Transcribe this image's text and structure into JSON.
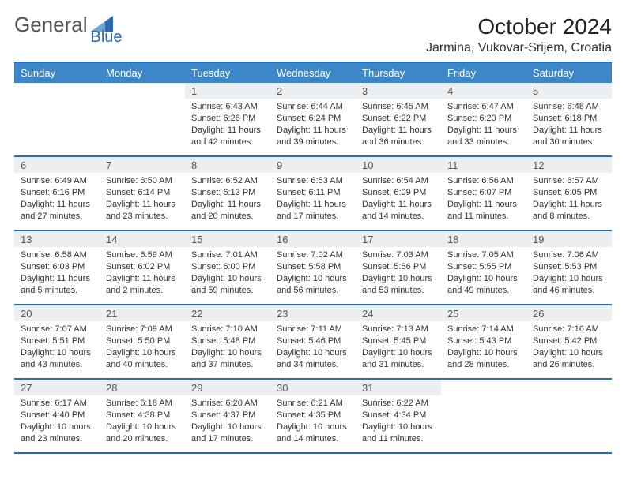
{
  "logo": {
    "part1": "General",
    "part2": "Blue"
  },
  "title": "October 2024",
  "subtitle": "Jarmina, Vukovar-Srijem, Croatia",
  "colors": {
    "header_bg": "#3b87c8",
    "border": "#2a6db5",
    "daynum_bg": "#eceff1",
    "text": "#333333",
    "logo_gray": "#555555",
    "logo_blue": "#2a6db5"
  },
  "day_names": [
    "Sunday",
    "Monday",
    "Tuesday",
    "Wednesday",
    "Thursday",
    "Friday",
    "Saturday"
  ],
  "weeks": [
    [
      null,
      null,
      {
        "d": "1",
        "sr": "Sunrise: 6:43 AM",
        "ss": "Sunset: 6:26 PM",
        "dl": "Daylight: 11 hours and 42 minutes."
      },
      {
        "d": "2",
        "sr": "Sunrise: 6:44 AM",
        "ss": "Sunset: 6:24 PM",
        "dl": "Daylight: 11 hours and 39 minutes."
      },
      {
        "d": "3",
        "sr": "Sunrise: 6:45 AM",
        "ss": "Sunset: 6:22 PM",
        "dl": "Daylight: 11 hours and 36 minutes."
      },
      {
        "d": "4",
        "sr": "Sunrise: 6:47 AM",
        "ss": "Sunset: 6:20 PM",
        "dl": "Daylight: 11 hours and 33 minutes."
      },
      {
        "d": "5",
        "sr": "Sunrise: 6:48 AM",
        "ss": "Sunset: 6:18 PM",
        "dl": "Daylight: 11 hours and 30 minutes."
      }
    ],
    [
      {
        "d": "6",
        "sr": "Sunrise: 6:49 AM",
        "ss": "Sunset: 6:16 PM",
        "dl": "Daylight: 11 hours and 27 minutes."
      },
      {
        "d": "7",
        "sr": "Sunrise: 6:50 AM",
        "ss": "Sunset: 6:14 PM",
        "dl": "Daylight: 11 hours and 23 minutes."
      },
      {
        "d": "8",
        "sr": "Sunrise: 6:52 AM",
        "ss": "Sunset: 6:13 PM",
        "dl": "Daylight: 11 hours and 20 minutes."
      },
      {
        "d": "9",
        "sr": "Sunrise: 6:53 AM",
        "ss": "Sunset: 6:11 PM",
        "dl": "Daylight: 11 hours and 17 minutes."
      },
      {
        "d": "10",
        "sr": "Sunrise: 6:54 AM",
        "ss": "Sunset: 6:09 PM",
        "dl": "Daylight: 11 hours and 14 minutes."
      },
      {
        "d": "11",
        "sr": "Sunrise: 6:56 AM",
        "ss": "Sunset: 6:07 PM",
        "dl": "Daylight: 11 hours and 11 minutes."
      },
      {
        "d": "12",
        "sr": "Sunrise: 6:57 AM",
        "ss": "Sunset: 6:05 PM",
        "dl": "Daylight: 11 hours and 8 minutes."
      }
    ],
    [
      {
        "d": "13",
        "sr": "Sunrise: 6:58 AM",
        "ss": "Sunset: 6:03 PM",
        "dl": "Daylight: 11 hours and 5 minutes."
      },
      {
        "d": "14",
        "sr": "Sunrise: 6:59 AM",
        "ss": "Sunset: 6:02 PM",
        "dl": "Daylight: 11 hours and 2 minutes."
      },
      {
        "d": "15",
        "sr": "Sunrise: 7:01 AM",
        "ss": "Sunset: 6:00 PM",
        "dl": "Daylight: 10 hours and 59 minutes."
      },
      {
        "d": "16",
        "sr": "Sunrise: 7:02 AM",
        "ss": "Sunset: 5:58 PM",
        "dl": "Daylight: 10 hours and 56 minutes."
      },
      {
        "d": "17",
        "sr": "Sunrise: 7:03 AM",
        "ss": "Sunset: 5:56 PM",
        "dl": "Daylight: 10 hours and 53 minutes."
      },
      {
        "d": "18",
        "sr": "Sunrise: 7:05 AM",
        "ss": "Sunset: 5:55 PM",
        "dl": "Daylight: 10 hours and 49 minutes."
      },
      {
        "d": "19",
        "sr": "Sunrise: 7:06 AM",
        "ss": "Sunset: 5:53 PM",
        "dl": "Daylight: 10 hours and 46 minutes."
      }
    ],
    [
      {
        "d": "20",
        "sr": "Sunrise: 7:07 AM",
        "ss": "Sunset: 5:51 PM",
        "dl": "Daylight: 10 hours and 43 minutes."
      },
      {
        "d": "21",
        "sr": "Sunrise: 7:09 AM",
        "ss": "Sunset: 5:50 PM",
        "dl": "Daylight: 10 hours and 40 minutes."
      },
      {
        "d": "22",
        "sr": "Sunrise: 7:10 AM",
        "ss": "Sunset: 5:48 PM",
        "dl": "Daylight: 10 hours and 37 minutes."
      },
      {
        "d": "23",
        "sr": "Sunrise: 7:11 AM",
        "ss": "Sunset: 5:46 PM",
        "dl": "Daylight: 10 hours and 34 minutes."
      },
      {
        "d": "24",
        "sr": "Sunrise: 7:13 AM",
        "ss": "Sunset: 5:45 PM",
        "dl": "Daylight: 10 hours and 31 minutes."
      },
      {
        "d": "25",
        "sr": "Sunrise: 7:14 AM",
        "ss": "Sunset: 5:43 PM",
        "dl": "Daylight: 10 hours and 28 minutes."
      },
      {
        "d": "26",
        "sr": "Sunrise: 7:16 AM",
        "ss": "Sunset: 5:42 PM",
        "dl": "Daylight: 10 hours and 26 minutes."
      }
    ],
    [
      {
        "d": "27",
        "sr": "Sunrise: 6:17 AM",
        "ss": "Sunset: 4:40 PM",
        "dl": "Daylight: 10 hours and 23 minutes."
      },
      {
        "d": "28",
        "sr": "Sunrise: 6:18 AM",
        "ss": "Sunset: 4:38 PM",
        "dl": "Daylight: 10 hours and 20 minutes."
      },
      {
        "d": "29",
        "sr": "Sunrise: 6:20 AM",
        "ss": "Sunset: 4:37 PM",
        "dl": "Daylight: 10 hours and 17 minutes."
      },
      {
        "d": "30",
        "sr": "Sunrise: 6:21 AM",
        "ss": "Sunset: 4:35 PM",
        "dl": "Daylight: 10 hours and 14 minutes."
      },
      {
        "d": "31",
        "sr": "Sunrise: 6:22 AM",
        "ss": "Sunset: 4:34 PM",
        "dl": "Daylight: 10 hours and 11 minutes."
      },
      null,
      null
    ]
  ]
}
